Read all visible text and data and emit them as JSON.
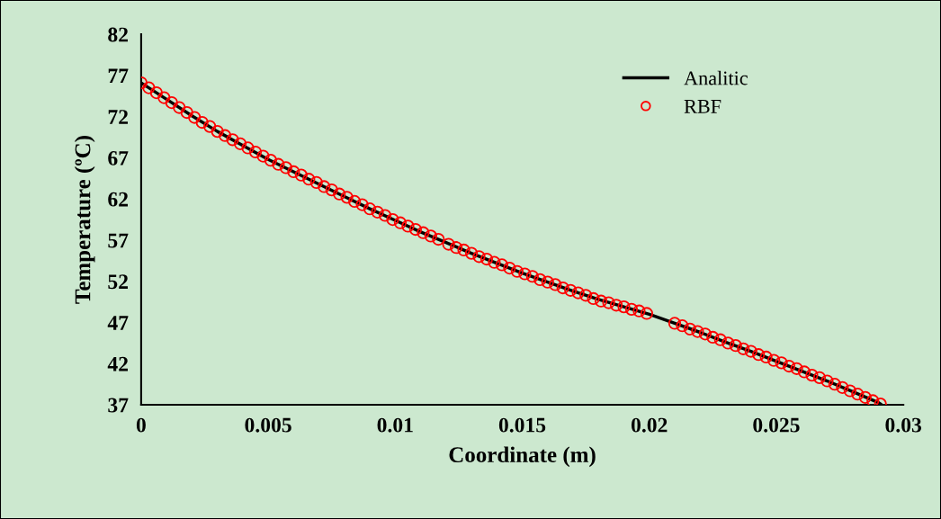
{
  "chart_data": {
    "type": "line",
    "xlabel": "Coordinate (m)",
    "ylabel": "Temperature (ºC)",
    "xlim": [
      0,
      0.03
    ],
    "xticks": [
      0,
      0.005,
      0.01,
      0.015,
      0.02,
      0.025,
      0.03
    ],
    "ylim": [
      37,
      82
    ],
    "yticks": [
      37,
      42,
      47,
      52,
      57,
      62,
      67,
      72,
      77,
      82
    ],
    "grid": false,
    "legend": "top right",
    "series": [
      {
        "name": "Analitic",
        "marker": "none",
        "line_style": "solid",
        "color": "#000000",
        "x": [
          0,
          0.001,
          0.002,
          0.003,
          0.004,
          0.005,
          0.006,
          0.007,
          0.008,
          0.009,
          0.01,
          0.011,
          0.012,
          0.013,
          0.014,
          0.015,
          0.016,
          0.017,
          0.018,
          0.019,
          0.02,
          0.021,
          0.022,
          0.023,
          0.024,
          0.025,
          0.026,
          0.027,
          0.028,
          0.029,
          0.0291
        ],
        "values": [
          76.1,
          74.1,
          72.1,
          70.2,
          68.5,
          66.8,
          65.3,
          63.8,
          62.3,
          60.8,
          59.4,
          58.0,
          56.7,
          55.4,
          54.2,
          53.0,
          51.9,
          50.8,
          49.8,
          48.9,
          48.0,
          46.9,
          45.8,
          44.6,
          43.5,
          42.3,
          41.1,
          39.9,
          38.6,
          37.3,
          37.1
        ]
      },
      {
        "name": "RBF",
        "type": "scatter",
        "marker": "circle",
        "color": "#ff0000",
        "x": [
          0,
          0.0003,
          0.0006,
          0.0009,
          0.0012,
          0.0015,
          0.0018,
          0.0021,
          0.0024,
          0.0027,
          0.003,
          0.0033,
          0.0036,
          0.0039,
          0.0042,
          0.0045,
          0.0048,
          0.0051,
          0.0054,
          0.0057,
          0.006,
          0.0063,
          0.0066,
          0.0069,
          0.0072,
          0.0075,
          0.0078,
          0.0081,
          0.0084,
          0.0087,
          0.009,
          0.0093,
          0.0096,
          0.0099,
          0.0102,
          0.0105,
          0.0108,
          0.0111,
          0.0114,
          0.0117,
          0.0121,
          0.0124,
          0.0127,
          0.013,
          0.0133,
          0.0136,
          0.0139,
          0.0142,
          0.0145,
          0.0148,
          0.0151,
          0.0154,
          0.0157,
          0.016,
          0.0163,
          0.0166,
          0.0169,
          0.0172,
          0.0175,
          0.0178,
          0.0181,
          0.0184,
          0.0187,
          0.019,
          0.0193,
          0.0196,
          0.0199,
          0.021,
          0.0213,
          0.0216,
          0.0219,
          0.0222,
          0.0225,
          0.0228,
          0.0231,
          0.0234,
          0.0237,
          0.024,
          0.0243,
          0.0246,
          0.0249,
          0.0252,
          0.0255,
          0.0258,
          0.0261,
          0.0264,
          0.0267,
          0.027,
          0.0273,
          0.0276,
          0.0279,
          0.0282,
          0.0285,
          0.0288,
          0.0291
        ],
        "values": [
          76.1,
          75.5,
          74.9,
          74.3,
          73.7,
          73.1,
          72.5,
          71.9,
          71.3,
          70.8,
          70.2,
          69.7,
          69.2,
          68.7,
          68.2,
          67.7,
          67.2,
          66.7,
          66.2,
          65.8,
          65.3,
          64.9,
          64.4,
          64.0,
          63.5,
          63.1,
          62.6,
          62.2,
          61.7,
          61.3,
          60.8,
          60.4,
          60.0,
          59.5,
          59.1,
          58.7,
          58.3,
          57.9,
          57.5,
          57.1,
          56.5,
          56.1,
          55.8,
          55.4,
          55.0,
          54.7,
          54.3,
          54.0,
          53.6,
          53.2,
          52.9,
          52.6,
          52.2,
          51.9,
          51.6,
          51.2,
          50.9,
          50.6,
          50.3,
          49.9,
          49.6,
          49.4,
          49.1,
          48.9,
          48.6,
          48.4,
          48.1,
          46.9,
          46.6,
          46.2,
          45.9,
          45.6,
          45.2,
          44.9,
          44.5,
          44.2,
          43.8,
          43.5,
          43.1,
          42.8,
          42.4,
          42.1,
          41.7,
          41.4,
          41.0,
          40.6,
          40.3,
          39.9,
          39.5,
          39.1,
          38.7,
          38.3,
          37.9,
          37.5,
          37.1
        ]
      }
    ]
  }
}
